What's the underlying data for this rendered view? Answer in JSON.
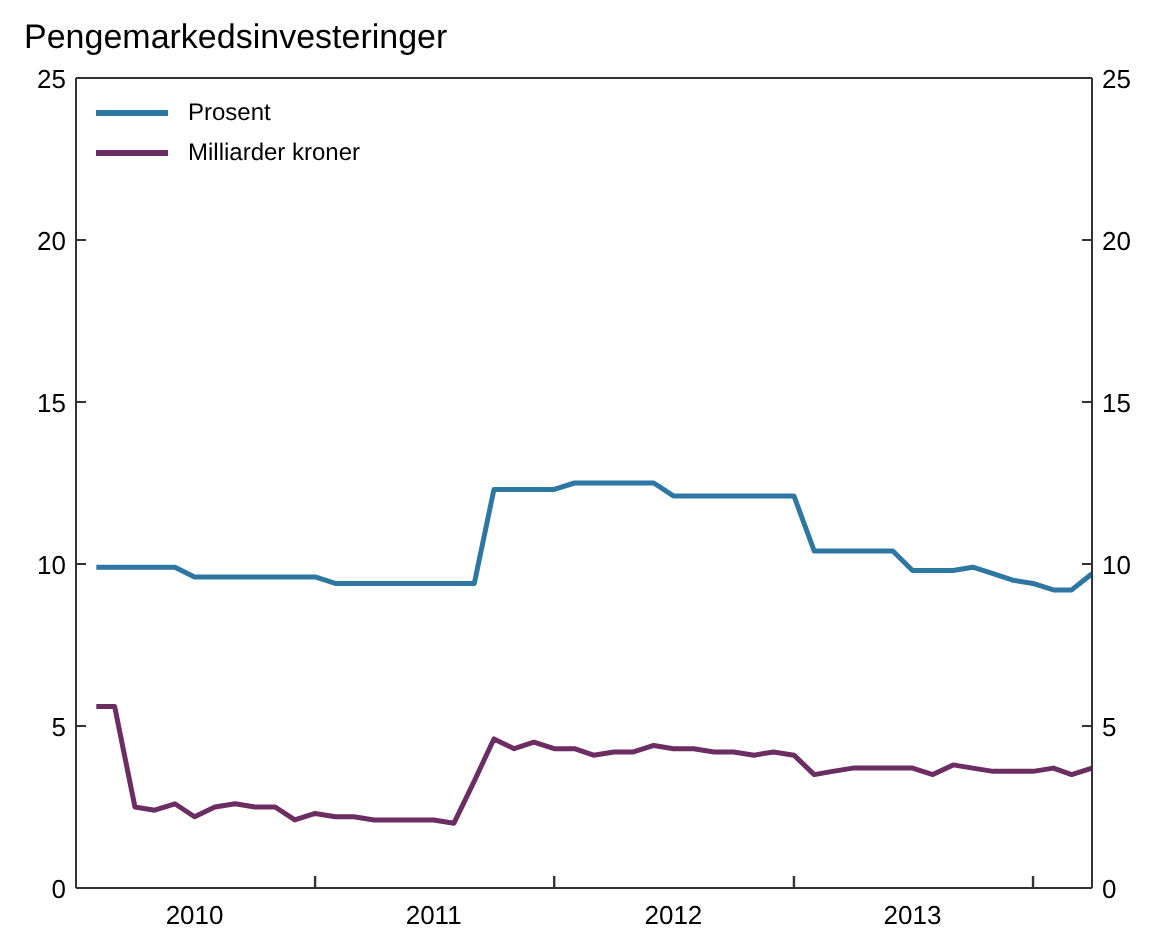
{
  "chart_data": {
    "type": "line",
    "title": "Pengemarkedsinvesteringer",
    "x": [
      "2010-02",
      "2010-03",
      "2010-04",
      "2010-05",
      "2010-06",
      "2010-07",
      "2010-08",
      "2010-09",
      "2010-10",
      "2010-11",
      "2010-12",
      "2011-01",
      "2011-02",
      "2011-03",
      "2011-04",
      "2011-05",
      "2011-06",
      "2011-07",
      "2011-08",
      "2011-09",
      "2011-10",
      "2011-11",
      "2011-12",
      "2012-01",
      "2012-02",
      "2012-03",
      "2012-04",
      "2012-05",
      "2012-06",
      "2012-07",
      "2012-08",
      "2012-09",
      "2012-10",
      "2012-11",
      "2012-12",
      "2013-01",
      "2013-02",
      "2013-03",
      "2013-04",
      "2013-05",
      "2013-06",
      "2013-07",
      "2013-08",
      "2013-09",
      "2013-10",
      "2013-11",
      "2013-12",
      "2014-01",
      "2014-02",
      "2014-03",
      "2014-04"
    ],
    "series": [
      {
        "name": "Prosent",
        "color": "#2e77a3",
        "values": [
          9.9,
          9.9,
          9.9,
          9.9,
          9.9,
          9.6,
          9.6,
          9.6,
          9.6,
          9.6,
          9.6,
          9.6,
          9.4,
          9.4,
          9.4,
          9.4,
          9.4,
          9.4,
          9.4,
          9.4,
          12.3,
          12.3,
          12.3,
          12.3,
          12.5,
          12.5,
          12.5,
          12.5,
          12.5,
          12.1,
          12.1,
          12.1,
          12.1,
          12.1,
          12.1,
          12.1,
          10.4,
          10.4,
          10.4,
          10.4,
          10.4,
          9.8,
          9.8,
          9.8,
          9.9,
          9.7,
          9.5,
          9.4,
          9.2,
          9.2,
          9.7
        ]
      },
      {
        "name": "Milliarder kroner",
        "color": "#6b2d62",
        "values": [
          5.6,
          5.6,
          2.5,
          2.4,
          2.6,
          2.2,
          2.5,
          2.6,
          2.5,
          2.5,
          2.1,
          2.3,
          2.2,
          2.2,
          2.1,
          2.1,
          2.1,
          2.1,
          2.0,
          3.3,
          4.6,
          4.3,
          4.5,
          4.3,
          4.3,
          4.1,
          4.2,
          4.2,
          4.4,
          4.3,
          4.3,
          4.2,
          4.2,
          4.1,
          4.2,
          4.1,
          3.5,
          3.6,
          3.7,
          3.7,
          3.7,
          3.7,
          3.5,
          3.8,
          3.7,
          3.6,
          3.6,
          3.6,
          3.7,
          3.5,
          3.7
        ]
      }
    ],
    "xlim": [
      "2010-01",
      "2014-04"
    ],
    "xticks": [
      {
        "value": "2011-01",
        "label": null
      },
      {
        "value": "2012-01",
        "label": null
      },
      {
        "value": "2013-01",
        "label": null
      },
      {
        "value": "2014-01",
        "label": null
      },
      {
        "value": "2010-07",
        "label": "2010"
      },
      {
        "value": "2011-07",
        "label": "2011"
      },
      {
        "value": "2012-07",
        "label": "2012"
      },
      {
        "value": "2013-07",
        "label": "2013"
      }
    ],
    "ylim": [
      0,
      25
    ],
    "yticks": [
      0,
      5,
      10,
      15,
      20,
      25
    ],
    "y2lim": [
      0,
      25
    ],
    "y2ticks": [
      0,
      5,
      10,
      15,
      20,
      25
    ],
    "legend": "top left",
    "grid": false
  }
}
